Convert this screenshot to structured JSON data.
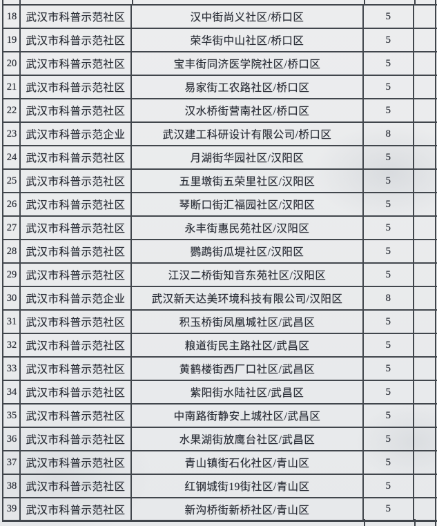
{
  "colors": {
    "paper": "#eaecee",
    "line": "#41464c",
    "text": "#2b2f38"
  },
  "table": {
    "rows": [
      {
        "num": "18",
        "category": "武汉市科普示范社区",
        "name": "汉中街尚义社区/桥口区",
        "score": "5",
        "blank": ""
      },
      {
        "num": "19",
        "category": "武汉市科普示范社区",
        "name": "荣华街中山社区/桥口区",
        "score": "5",
        "blank": ""
      },
      {
        "num": "20",
        "category": "武汉市科普示范社区",
        "name": "宝丰街同济医学院社区/桥口区",
        "score": "5",
        "blank": ""
      },
      {
        "num": "21",
        "category": "武汉市科普示范社区",
        "name": "易家街工农路社区/桥口区",
        "score": "5",
        "blank": ""
      },
      {
        "num": "22",
        "category": "武汉市科普示范社区",
        "name": "汉水桥街营南社区/桥口区",
        "score": "5",
        "blank": ""
      },
      {
        "num": "23",
        "category": "武汉市科普示范企业",
        "name": "武汉建工科研设计有限公司/桥口区",
        "score": "8",
        "blank": ""
      },
      {
        "num": "24",
        "category": "武汉市科普示范社区",
        "name": "月湖街华园社区/汉阳区",
        "score": "5",
        "blank": ""
      },
      {
        "num": "25",
        "category": "武汉市科普示范社区",
        "name": "五里墩街五荣里社区/汉阳区",
        "score": "5",
        "blank": ""
      },
      {
        "num": "26",
        "category": "武汉市科普示范社区",
        "name": "琴断口街汇福园社区/汉阳区",
        "score": "5",
        "blank": ""
      },
      {
        "num": "27",
        "category": "武汉市科普示范社区",
        "name": "永丰街惠民苑社区/汉阳区",
        "score": "5",
        "blank": ""
      },
      {
        "num": "28",
        "category": "武汉市科普示范社区",
        "name": "鹦鹉街瓜堤社区/汉阳区",
        "score": "5",
        "blank": ""
      },
      {
        "num": "29",
        "category": "武汉市科普示范社区",
        "name": "江汉二桥街知音东苑社区/汉阳区",
        "score": "5",
        "blank": ""
      },
      {
        "num": "30",
        "category": "武汉市科普示范企业",
        "name": "武汉新天达美环境科技有限公司/汉阳区",
        "score": "8",
        "blank": ""
      },
      {
        "num": "31",
        "category": "武汉市科普示范社区",
        "name": "积玉桥街凤凰城社区/武昌区",
        "score": "5",
        "blank": ""
      },
      {
        "num": "32",
        "category": "武汉市科普示范社区",
        "name": "粮道街民主路社区/武昌区",
        "score": "5",
        "blank": ""
      },
      {
        "num": "33",
        "category": "武汉市科普示范社区",
        "name": "黄鹤楼街西厂口社区/武昌区",
        "score": "5",
        "blank": ""
      },
      {
        "num": "34",
        "category": "武汉市科普示范社区",
        "name": "紫阳街水陆社区/武昌区",
        "score": "5",
        "blank": ""
      },
      {
        "num": "35",
        "category": "武汉市科普示范社区",
        "name": "中南路街静安上城社区/武昌区",
        "score": "5",
        "blank": ""
      },
      {
        "num": "36",
        "category": "武汉市科普示范社区",
        "name": "水果湖街放鹰台社区/武昌区",
        "score": "5",
        "blank": ""
      },
      {
        "num": "37",
        "category": "武汉市科普示范社区",
        "name": "青山镇街石化社区/青山区",
        "score": "5",
        "blank": ""
      },
      {
        "num": "38",
        "category": "武汉市科普示范社区",
        "name": "红钢城街19街社区/青山区",
        "score": "5",
        "blank": ""
      },
      {
        "num": "39",
        "category": "武汉市科普示范社区",
        "name": "新沟桥街新桥社区/青山区",
        "score": "5",
        "blank": ""
      }
    ]
  }
}
